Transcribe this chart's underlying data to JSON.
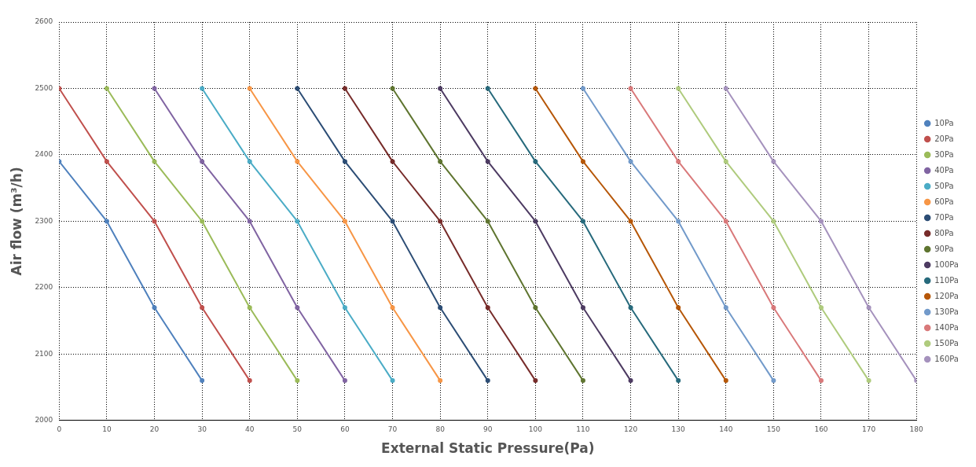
{
  "chart_data": {
    "type": "line",
    "xlabel": "External Static Pressure(Pa)",
    "ylabel": "Air flow (m³/h)",
    "xlim": [
      0,
      180
    ],
    "xticks": [
      0,
      10,
      20,
      30,
      40,
      50,
      60,
      70,
      80,
      90,
      100,
      110,
      120,
      130,
      140,
      150,
      160,
      170,
      180
    ],
    "ylim": [
      2000,
      2600
    ],
    "yticks": [
      2000,
      2100,
      2200,
      2300,
      2400,
      2500,
      2600
    ],
    "grid": true,
    "legend": "right",
    "marker": "circle",
    "line_style": "solid",
    "series": [
      {
        "name": "10Pa",
        "color": "#4f81bd",
        "x": [
          0,
          10,
          20,
          30
        ],
        "values": [
          2390,
          2300,
          2170,
          2060
        ]
      },
      {
        "name": "20Pa",
        "color": "#c0504d",
        "x": [
          0,
          10,
          20,
          30,
          40
        ],
        "values": [
          2500,
          2390,
          2300,
          2170,
          2060
        ]
      },
      {
        "name": "30Pa",
        "color": "#9bbb59",
        "x": [
          10,
          20,
          30,
          40,
          50
        ],
        "values": [
          2500,
          2390,
          2300,
          2170,
          2060
        ]
      },
      {
        "name": "40Pa",
        "color": "#8064a2",
        "x": [
          20,
          30,
          40,
          50,
          60
        ],
        "values": [
          2500,
          2390,
          2300,
          2170,
          2060
        ]
      },
      {
        "name": "50Pa",
        "color": "#4bacc6",
        "x": [
          30,
          40,
          50,
          60,
          70
        ],
        "values": [
          2500,
          2390,
          2300,
          2170,
          2060
        ]
      },
      {
        "name": "60Pa",
        "color": "#f79646",
        "x": [
          40,
          50,
          60,
          70,
          80
        ],
        "values": [
          2500,
          2390,
          2300,
          2170,
          2060
        ]
      },
      {
        "name": "70Pa",
        "color": "#2c4d75",
        "x": [
          50,
          60,
          70,
          80,
          90
        ],
        "values": [
          2500,
          2390,
          2300,
          2170,
          2060
        ]
      },
      {
        "name": "80Pa",
        "color": "#772c2a",
        "x": [
          60,
          70,
          80,
          90,
          100
        ],
        "values": [
          2500,
          2390,
          2300,
          2170,
          2060
        ]
      },
      {
        "name": "90Pa",
        "color": "#5f7530",
        "x": [
          70,
          80,
          90,
          100,
          110
        ],
        "values": [
          2500,
          2390,
          2300,
          2170,
          2060
        ]
      },
      {
        "name": "100Pa",
        "color": "#4d3b62",
        "x": [
          80,
          90,
          100,
          110,
          120
        ],
        "values": [
          2500,
          2390,
          2300,
          2170,
          2060
        ]
      },
      {
        "name": "110Pa",
        "color": "#276a7c",
        "x": [
          90,
          100,
          110,
          120,
          130
        ],
        "values": [
          2500,
          2390,
          2300,
          2170,
          2060
        ]
      },
      {
        "name": "120Pa",
        "color": "#b65708",
        "x": [
          100,
          110,
          120,
          130,
          140
        ],
        "values": [
          2500,
          2390,
          2300,
          2170,
          2060
        ]
      },
      {
        "name": "130Pa",
        "color": "#729aca",
        "x": [
          110,
          120,
          130,
          140,
          150
        ],
        "values": [
          2500,
          2390,
          2300,
          2170,
          2060
        ]
      },
      {
        "name": "140Pa",
        "color": "#d9797a",
        "x": [
          120,
          130,
          140,
          150,
          160
        ],
        "values": [
          2500,
          2390,
          2300,
          2170,
          2060
        ]
      },
      {
        "name": "150Pa",
        "color": "#afcb7d",
        "x": [
          130,
          140,
          150,
          160,
          170
        ],
        "values": [
          2500,
          2390,
          2300,
          2170,
          2060
        ]
      },
      {
        "name": "160Pa",
        "color": "#a592bd",
        "x": [
          140,
          150,
          160,
          170,
          180
        ],
        "values": [
          2500,
          2390,
          2300,
          2170,
          2060
        ]
      }
    ]
  }
}
